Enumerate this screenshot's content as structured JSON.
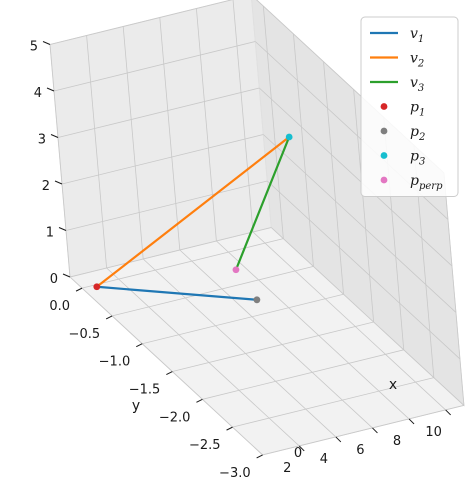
{
  "chart_data": {
    "type": "line3d",
    "projection": "3d",
    "grid": true,
    "legend_placement": "top-right",
    "xlabel": "x",
    "ylabel": "y",
    "zlabel": "",
    "xlim": [
      0,
      11
    ],
    "ylim": [
      -3.0,
      0.2
    ],
    "zlim": [
      0,
      5
    ],
    "x_ticks": [
      "2",
      "4",
      "6",
      "8",
      "10"
    ],
    "x_tick_values": [
      2,
      4,
      6,
      8,
      10
    ],
    "y_ticks": [
      "0.0",
      "−0.5",
      "−1.0",
      "−1.5",
      "−2.0",
      "−2.5",
      "−3.0"
    ],
    "y_tick_values": [
      0.0,
      -0.5,
      -1.0,
      -1.5,
      -2.0,
      -2.5,
      -3.0
    ],
    "z_ticks": [
      "5",
      "4",
      "3",
      "2",
      "1",
      "0"
    ],
    "z_tick_values": [
      5,
      4,
      3,
      2,
      1,
      0
    ],
    "zero_label": "0",
    "series": [
      {
        "name": "v",
        "sub": "1",
        "kind": "line",
        "color": "#1f77b4",
        "points": [
          [
            0.5,
            -0.1,
            0.1
          ],
          [
            1.0,
            -2.8,
            3.0
          ]
        ]
      },
      {
        "name": "v",
        "sub": "2",
        "kind": "line",
        "color": "#ff7f0e",
        "points": [
          [
            0.5,
            -0.1,
            0.1
          ],
          [
            10.0,
            -0.6,
            3.0
          ]
        ]
      },
      {
        "name": "v",
        "sub": "3",
        "kind": "line",
        "color": "#2ca02c",
        "points": [
          [
            10.0,
            -0.6,
            3.0
          ],
          [
            1.5,
            -2.3,
            3.0
          ]
        ]
      },
      {
        "name": "p",
        "sub": "1",
        "kind": "point",
        "color": "#d62728",
        "points": [
          [
            0.5,
            -0.1,
            0.1
          ]
        ]
      },
      {
        "name": "p",
        "sub": "2",
        "kind": "point",
        "color": "#7f7f7f",
        "points": [
          [
            1.0,
            -2.8,
            3.0
          ]
        ]
      },
      {
        "name": "p",
        "sub": "3",
        "kind": "point",
        "color": "#17becf",
        "points": [
          [
            10.0,
            -0.6,
            3.0
          ]
        ]
      },
      {
        "name": "p",
        "sub": "perp",
        "kind": "point",
        "color": "#e377c2",
        "points": [
          [
            1.5,
            -2.3,
            3.0
          ]
        ]
      }
    ]
  }
}
